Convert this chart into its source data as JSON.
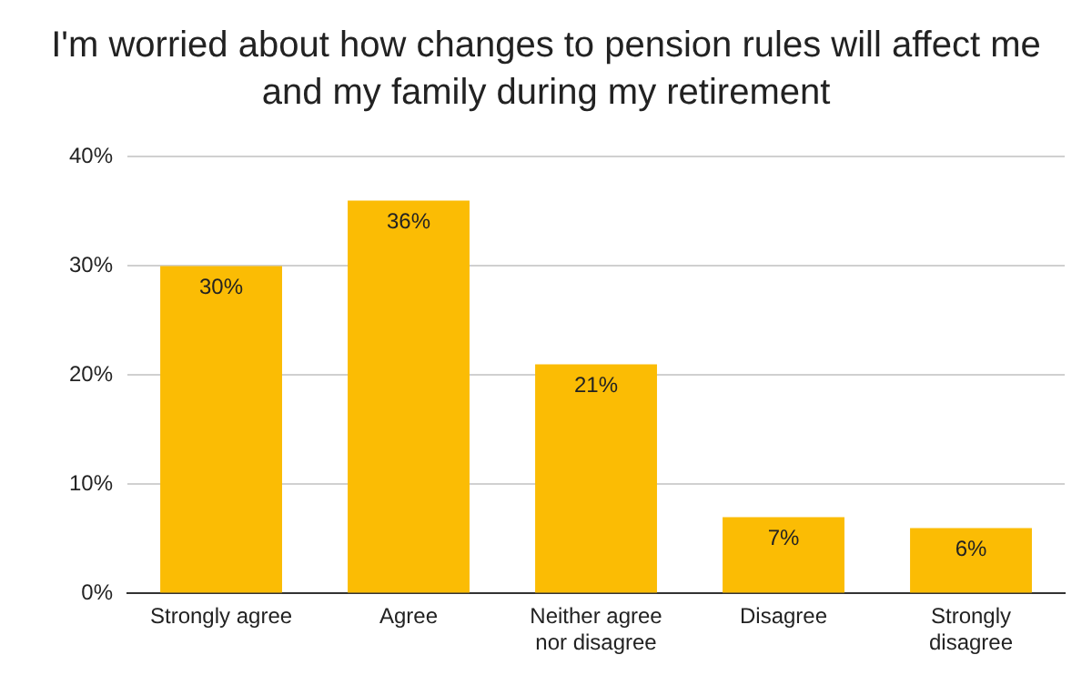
{
  "chart_data": {
    "type": "bar",
    "title": "I'm worried about how changes to pension rules will affect me and my family during my retirement",
    "categories": [
      "Strongly agree",
      "Agree",
      "Neither agree nor disagree",
      "Disagree",
      "Strongly disagree"
    ],
    "values": [
      30,
      36,
      21,
      7,
      6
    ],
    "value_labels": [
      "30%",
      "36%",
      "21%",
      "7%",
      "6%"
    ],
    "color": "#fbbc04",
    "ylim": [
      0,
      40
    ],
    "yticks": [
      {
        "value": 0,
        "label": "0%"
      },
      {
        "value": 10,
        "label": "10%"
      },
      {
        "value": 20,
        "label": "20%"
      },
      {
        "value": 30,
        "label": "30%"
      },
      {
        "value": 40,
        "label": "40%"
      }
    ],
    "grid": "y"
  }
}
